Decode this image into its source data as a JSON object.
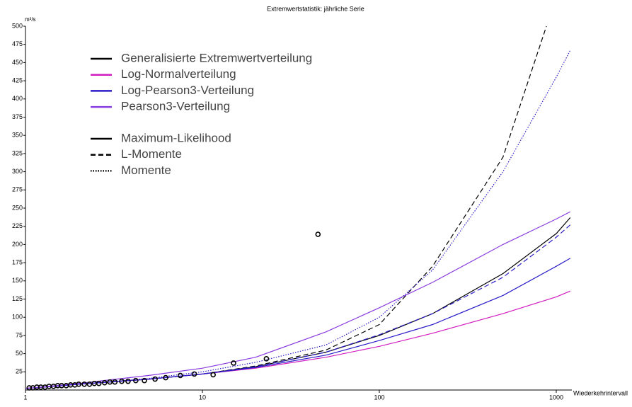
{
  "chart_data": {
    "type": "line",
    "title": "Extremwertstatistik: jährliche Serie",
    "y_label": "m³/s",
    "x_label": "Wiederkehrintervall",
    "xlim": [
      1,
      1225
    ],
    "ylim": [
      0,
      500
    ],
    "x_log": true,
    "xticks": [
      1,
      10,
      100,
      1000
    ],
    "xtick_labels": [
      "1",
      "10",
      "100",
      "1000"
    ],
    "yticks": [
      25,
      50,
      75,
      100,
      125,
      150,
      175,
      200,
      225,
      250,
      275,
      300,
      325,
      350,
      375,
      400,
      425,
      450,
      475,
      500
    ],
    "legend_distributions": [
      {
        "label": "Generalisierte Extremwertverteilung",
        "color": "#000000"
      },
      {
        "label": "Log-Normalverteilung",
        "color": "#d21cc0"
      },
      {
        "label": "Log-Pearson3-Verteilung",
        "color": "#2a1cc8"
      },
      {
        "label": "Pearson3-Verteilung",
        "color": "#8a3ce0"
      }
    ],
    "legend_methods": [
      {
        "label": "Maximum-Likelihood",
        "dash": "solid"
      },
      {
        "label": "L-Momente",
        "dash": "dashed"
      },
      {
        "label": "Momente",
        "dash": "dotted"
      }
    ],
    "series": [
      {
        "color": "#000000",
        "dash": "solid",
        "x": [
          1,
          2,
          5,
          10,
          20,
          50,
          100,
          200,
          500,
          1000,
          1200
        ],
        "values": [
          2,
          8,
          15,
          22,
          32,
          52,
          75,
          105,
          160,
          215,
          237
        ]
      },
      {
        "color": "#000000",
        "dash": "dashed",
        "x": [
          1,
          2,
          5,
          10,
          20,
          50,
          100,
          200,
          500,
          880
        ],
        "values": [
          2,
          8,
          15,
          22,
          33,
          55,
          90,
          170,
          320,
          500
        ]
      },
      {
        "color": "#2a1cc8",
        "dash": "dotted",
        "x": [
          1,
          2,
          5,
          10,
          20,
          50,
          100,
          200,
          500,
          1000,
          1200
        ],
        "values": [
          2,
          8,
          16,
          25,
          38,
          62,
          100,
          165,
          300,
          430,
          467
        ]
      },
      {
        "color": "#d21cc0",
        "dash": "solid",
        "x": [
          1,
          2,
          5,
          10,
          20,
          50,
          100,
          200,
          500,
          1000,
          1200
        ],
        "values": [
          2,
          8,
          15,
          22,
          30,
          45,
          60,
          78,
          105,
          128,
          136
        ]
      },
      {
        "color": "#2a1cc8",
        "dash": "solid",
        "x": [
          1,
          2,
          5,
          10,
          20,
          50,
          100,
          200,
          500,
          1000,
          1200
        ],
        "values": [
          2,
          8,
          15,
          22,
          31,
          48,
          68,
          90,
          130,
          170,
          181
        ]
      },
      {
        "color": "#2a1cc8",
        "dash": "dashed",
        "x": [
          1,
          2,
          5,
          10,
          20,
          50,
          100,
          200,
          500,
          1000,
          1200
        ],
        "values": [
          2,
          8,
          15,
          22,
          32,
          52,
          76,
          105,
          155,
          210,
          227
        ]
      },
      {
        "color": "#8a3ce0",
        "dash": "solid",
        "x": [
          1,
          2,
          5,
          10,
          20,
          50,
          100,
          200,
          500,
          1000,
          1200
        ],
        "values": [
          2,
          9,
          20,
          30,
          45,
          80,
          113,
          148,
          200,
          235,
          245
        ]
      }
    ],
    "observations": {
      "x": [
        45,
        23,
        15,
        11.5,
        9,
        7.5,
        6.2,
        5.4,
        4.7,
        4.2,
        3.8,
        3.5,
        3.2,
        3.0,
        2.8,
        2.6,
        2.45,
        2.3,
        2.15,
        2.0,
        1.9,
        1.8,
        1.7,
        1.6,
        1.52,
        1.44,
        1.36,
        1.29,
        1.22,
        1.16,
        1.1,
        1.05
      ],
      "values": [
        214,
        43,
        37,
        21,
        22,
        20,
        17,
        15,
        13,
        13,
        12,
        12,
        11,
        11,
        10,
        9,
        9,
        8,
        8,
        8,
        7,
        7,
        6,
        6,
        6,
        5,
        5,
        4,
        4,
        4,
        3,
        3
      ]
    }
  }
}
